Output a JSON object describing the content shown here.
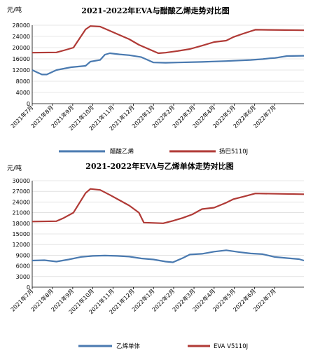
{
  "chart_data": [
    {
      "type": "line",
      "title": "2021-2022年EVA与醋酸乙烯走势对比图",
      "ylabel": "元/吨",
      "xlabel": "",
      "ylim": [
        0,
        28000
      ],
      "yticks": [
        0,
        4000,
        8000,
        12000,
        16000,
        20000,
        24000,
        28000
      ],
      "ytick_labels": [
        "0",
        "4000",
        "8000",
        "12000",
        "16000",
        "20000",
        "24000",
        "28000"
      ],
      "x_range": [
        2021.5,
        2022.62
      ],
      "x_ticks": [
        2021.5,
        2021.583,
        2021.667,
        2021.75,
        2021.833,
        2021.917,
        2022.0,
        2022.083,
        2022.167,
        2022.25,
        2022.333,
        2022.417,
        2022.5
      ],
      "x_tick_labels": [
        "2021年7月",
        "2021年8月",
        "2021年9月",
        "2021年10月",
        "2021年11月",
        "2021年12月",
        "2022年1月",
        "2022年2月",
        "2022年3月",
        "2022年4月",
        "2022年5月",
        "2022年6月",
        "2022年7月"
      ],
      "grid": "horizontal",
      "legend_position": "bottom",
      "series": [
        {
          "name": "醋酸乙烯",
          "color": "#4a7ab0",
          "x": [
            2021.5,
            2021.52,
            2021.54,
            2021.56,
            2021.6,
            2021.63,
            2021.66,
            2021.72,
            2021.74,
            2021.78,
            2021.8,
            2021.82,
            2021.86,
            2021.9,
            2021.95,
            2022.0,
            2022.05,
            2022.1,
            2022.2,
            2022.3,
            2022.4,
            2022.45,
            2022.48,
            2022.5,
            2022.55,
            2022.62
          ],
          "values": [
            12000,
            11200,
            10400,
            10400,
            12000,
            12500,
            13000,
            13500,
            15000,
            15600,
            17500,
            18000,
            17600,
            17300,
            16600,
            14700,
            14600,
            14700,
            14900,
            15200,
            15600,
            15900,
            16200,
            16300,
            17000,
            17100
          ]
        },
        {
          "name": "扬巴5110J",
          "color": "#b03a36",
          "x": [
            2021.5,
            2021.6,
            2021.63,
            2021.67,
            2021.72,
            2021.74,
            2021.78,
            2021.82,
            2021.86,
            2021.9,
            2021.94,
            2022.02,
            2022.05,
            2022.1,
            2022.15,
            2022.2,
            2022.25,
            2022.3,
            2022.33,
            2022.37,
            2022.42,
            2022.62
          ],
          "values": [
            18200,
            18300,
            19000,
            20000,
            26500,
            27700,
            27500,
            26000,
            24500,
            23000,
            21000,
            18000,
            18200,
            18800,
            19500,
            20700,
            22000,
            22500,
            23800,
            25000,
            26400,
            26200
          ]
        }
      ]
    },
    {
      "type": "line",
      "title": "2021-2022年EVA与乙烯单体走势对比图",
      "ylabel": "元/吨",
      "xlabel": "",
      "ylim": [
        0,
        30000
      ],
      "yticks": [
        0,
        3000,
        6000,
        9000,
        12000,
        15000,
        18000,
        21000,
        24000,
        27000,
        30000
      ],
      "ytick_labels": [
        "0",
        "3000",
        "6000",
        "9000",
        "12000",
        "15000",
        "18000",
        "21000",
        "24000",
        "27000",
        "30000"
      ],
      "x_range": [
        2021.5,
        2022.62
      ],
      "x_ticks": [
        2021.5,
        2021.583,
        2021.667,
        2021.75,
        2021.833,
        2021.917,
        2022.0,
        2022.083,
        2022.167,
        2022.25,
        2022.333,
        2022.417,
        2022.5
      ],
      "x_tick_labels": [
        "2021年7月",
        "2021年8月",
        "2021年9月",
        "2021年10月",
        "2021年11月",
        "2021年12月",
        "2022年1月",
        "2022年2月",
        "2022年3月",
        "2022年4月",
        "2022年5月",
        "2022年6月",
        "2022年7月"
      ],
      "grid": "horizontal",
      "legend_position": "bottom",
      "series": [
        {
          "name": "乙烯单体",
          "color": "#4a7ab0",
          "x": [
            2021.5,
            2021.55,
            2021.6,
            2021.65,
            2021.7,
            2021.75,
            2021.8,
            2021.85,
            2021.9,
            2021.95,
            2022.0,
            2022.05,
            2022.08,
            2022.12,
            2022.15,
            2022.2,
            2022.25,
            2022.3,
            2022.35,
            2022.4,
            2022.45,
            2022.5,
            2022.55,
            2022.6,
            2022.62
          ],
          "values": [
            7500,
            7600,
            7200,
            7800,
            8500,
            8800,
            8900,
            8800,
            8600,
            8100,
            7800,
            7200,
            7000,
            8200,
            9200,
            9400,
            10000,
            10400,
            9900,
            9500,
            9300,
            8500,
            8200,
            7900,
            7500
          ]
        },
        {
          "name": "EVA V5110J",
          "color": "#b03a36",
          "x": [
            2021.5,
            2021.6,
            2021.63,
            2021.67,
            2021.72,
            2021.74,
            2021.78,
            2021.82,
            2021.86,
            2021.9,
            2021.94,
            2021.96,
            2022.04,
            2022.08,
            2022.12,
            2022.16,
            2022.2,
            2022.25,
            2022.3,
            2022.33,
            2022.37,
            2022.42,
            2022.62
          ],
          "values": [
            18500,
            18600,
            19500,
            21000,
            26500,
            27700,
            27400,
            26000,
            24500,
            23000,
            21000,
            18200,
            18000,
            18700,
            19500,
            20500,
            22000,
            22400,
            23800,
            24800,
            25500,
            26400,
            26200
          ]
        }
      ]
    }
  ]
}
